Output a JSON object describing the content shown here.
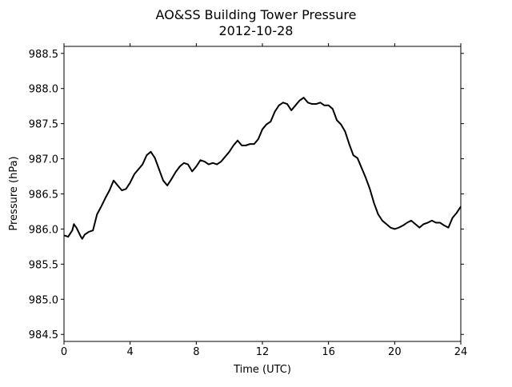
{
  "chart_data": {
    "type": "line",
    "title": "AO&SS Building Tower Pressure",
    "subtitle": "2012-10-28",
    "x_label": "Time (UTC)",
    "y_label": "Pressure (hPa)",
    "xlim": [
      0,
      24
    ],
    "xticks": [
      0,
      4,
      8,
      12,
      16,
      20,
      24
    ],
    "ylim": [
      984.4,
      988.6
    ],
    "yticks": [
      {
        "value": 984.5,
        "label": "984.5"
      },
      {
        "value": 985,
        "label": "985.0"
      },
      {
        "value": 985.5,
        "label": "985.5"
      },
      {
        "value": 986,
        "label": "986.0"
      },
      {
        "value": 986.5,
        "label": "986.5"
      },
      {
        "value": 987,
        "label": "987.0"
      },
      {
        "value": 987.5,
        "label": "987.5"
      },
      {
        "value": 988,
        "label": "988.0"
      },
      {
        "value": 988.5,
        "label": "988.5"
      }
    ],
    "grid": false,
    "series": [
      {
        "color": "#000000",
        "x": [
          0,
          0.25,
          0.5,
          0.6,
          0.75,
          1,
          1.1,
          1.25,
          1.5,
          1.75,
          2,
          2.25,
          2.5,
          2.75,
          3,
          3.25,
          3.5,
          3.75,
          4,
          4.25,
          4.5,
          4.75,
          5,
          5.25,
          5.5,
          5.75,
          6,
          6.25,
          6.5,
          6.75,
          7,
          7.25,
          7.5,
          7.75,
          8,
          8.25,
          8.5,
          8.75,
          9,
          9.25,
          9.5,
          9.75,
          10,
          10.25,
          10.5,
          10.75,
          11,
          11.25,
          11.5,
          11.75,
          12,
          12.25,
          12.5,
          12.75,
          13,
          13.25,
          13.5,
          13.75,
          14,
          14.25,
          14.5,
          14.75,
          15,
          15.25,
          15.5,
          15.75,
          16,
          16.25,
          16.5,
          16.75,
          17,
          17.25,
          17.5,
          17.75,
          18,
          18.25,
          18.5,
          18.75,
          19,
          19.25,
          19.5,
          19.75,
          20,
          20.25,
          20.5,
          20.75,
          21,
          21.25,
          21.5,
          21.75,
          22,
          22.25,
          22.5,
          22.75,
          23,
          23.25,
          23.5,
          23.75,
          24
        ],
        "values": [
          985.91,
          985.89,
          985.98,
          986.07,
          986.02,
          985.9,
          985.86,
          985.92,
          985.96,
          985.98,
          986.21,
          986.32,
          986.44,
          986.55,
          986.69,
          986.62,
          986.55,
          986.57,
          986.66,
          986.78,
          986.85,
          986.92,
          987.05,
          987.1,
          987.01,
          986.85,
          986.69,
          986.62,
          986.71,
          986.81,
          986.89,
          986.94,
          986.92,
          986.82,
          986.89,
          986.98,
          986.96,
          986.92,
          986.94,
          986.92,
          986.96,
          987.03,
          987.1,
          987.19,
          987.26,
          987.19,
          987.19,
          987.21,
          987.21,
          987.28,
          987.42,
          987.49,
          987.53,
          987.67,
          987.76,
          987.8,
          987.78,
          987.69,
          987.76,
          987.83,
          987.87,
          987.8,
          987.78,
          987.78,
          987.8,
          987.76,
          987.76,
          987.71,
          987.55,
          987.49,
          987.39,
          987.21,
          987.05,
          987.01,
          986.87,
          986.73,
          986.57,
          986.37,
          986.21,
          986.12,
          986.07,
          986.02,
          986,
          986.02,
          986.05,
          986.09,
          986.12,
          986.07,
          986.02,
          986.07,
          986.09,
          986.12,
          986.09,
          986.09,
          986.05,
          986.02,
          986.16,
          986.23,
          986.32
        ]
      }
    ]
  }
}
